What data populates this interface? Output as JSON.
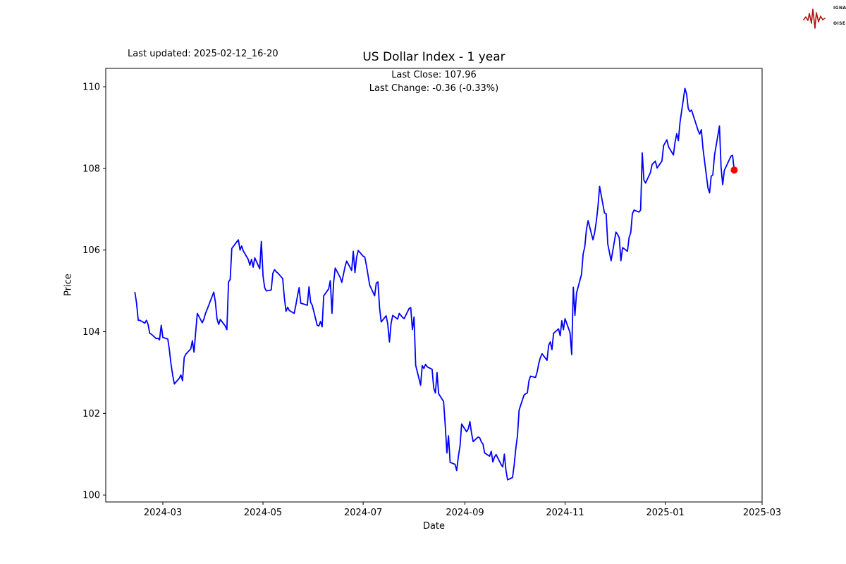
{
  "header": {
    "last_updated": "Last updated: 2025-02-12_16-20",
    "title": "US Dollar Index - 1 year",
    "subtitle_line1": "Last Close: 107.96",
    "subtitle_line2": "Last Change: -0.36 (-0.33%)"
  },
  "logo": {
    "accent_color": "#b01313",
    "rows": [
      {
        "box": "S",
        "rest": "IGNAL"
      },
      {
        "box": "2",
        "rest": ""
      },
      {
        "box": "N",
        "rest": "OISE"
      }
    ]
  },
  "chart_data": {
    "type": "line",
    "title": "US Dollar Index - 1 year",
    "xlabel": "Date",
    "ylabel": "Price",
    "grid": false,
    "legend": "none",
    "x_tick_labels": [
      "2024-03",
      "2024-05",
      "2024-07",
      "2024-09",
      "2024-11",
      "2025-01",
      "2025-03"
    ],
    "y_ticks": [
      100,
      102,
      104,
      106,
      108,
      110
    ],
    "ylim": [
      99.83,
      110.45
    ],
    "xlim": [
      "2024-01-26",
      "2025-03-02"
    ],
    "frame_color": "#000000",
    "series": [
      {
        "name": "US Dollar Index",
        "color": "#0000ff",
        "points": [
          [
            "2024-02-13",
            104.96
          ],
          [
            "2024-02-14",
            104.7
          ],
          [
            "2024-02-15",
            104.28
          ],
          [
            "2024-02-16",
            104.28
          ],
          [
            "2024-02-19",
            104.21
          ],
          [
            "2024-02-20",
            104.28
          ],
          [
            "2024-02-21",
            104.18
          ],
          [
            "2024-02-22",
            103.96
          ],
          [
            "2024-02-23",
            103.94
          ],
          [
            "2024-02-26",
            103.83
          ],
          [
            "2024-02-27",
            103.84
          ],
          [
            "2024-02-28",
            103.8
          ],
          [
            "2024-02-29",
            104.16
          ],
          [
            "2024-03-01",
            103.86
          ],
          [
            "2024-03-04",
            103.82
          ],
          [
            "2024-03-05",
            103.55
          ],
          [
            "2024-03-06",
            103.2
          ],
          [
            "2024-03-07",
            102.93
          ],
          [
            "2024-03-08",
            102.72
          ],
          [
            "2024-03-11",
            102.86
          ],
          [
            "2024-03-12",
            102.94
          ],
          [
            "2024-03-13",
            102.8
          ],
          [
            "2024-03-14",
            103.37
          ],
          [
            "2024-03-15",
            103.45
          ],
          [
            "2024-03-18",
            103.58
          ],
          [
            "2024-03-19",
            103.78
          ],
          [
            "2024-03-20",
            103.5
          ],
          [
            "2024-03-21",
            104.0
          ],
          [
            "2024-03-22",
            104.45
          ],
          [
            "2024-03-25",
            104.22
          ],
          [
            "2024-03-26",
            104.31
          ],
          [
            "2024-03-27",
            104.45
          ],
          [
            "2024-03-28",
            104.55
          ],
          [
            "2024-04-01",
            104.97
          ],
          [
            "2024-04-02",
            104.73
          ],
          [
            "2024-04-03",
            104.32
          ],
          [
            "2024-04-04",
            104.18
          ],
          [
            "2024-04-05",
            104.3
          ],
          [
            "2024-04-08",
            104.14
          ],
          [
            "2024-04-09",
            104.05
          ],
          [
            "2024-04-10",
            105.22
          ],
          [
            "2024-04-11",
            105.28
          ],
          [
            "2024-04-12",
            106.04
          ],
          [
            "2024-04-15",
            106.2
          ],
          [
            "2024-04-16",
            106.25
          ],
          [
            "2024-04-17",
            106.0
          ],
          [
            "2024-04-18",
            106.1
          ],
          [
            "2024-04-19",
            105.98
          ],
          [
            "2024-04-22",
            105.77
          ],
          [
            "2024-04-23",
            105.63
          ],
          [
            "2024-04-24",
            105.77
          ],
          [
            "2024-04-25",
            105.58
          ],
          [
            "2024-04-26",
            105.81
          ],
          [
            "2024-04-29",
            105.54
          ],
          [
            "2024-04-30",
            106.21
          ],
          [
            "2024-05-01",
            105.37
          ],
          [
            "2024-05-02",
            105.08
          ],
          [
            "2024-05-03",
            105.0
          ],
          [
            "2024-05-06",
            105.02
          ],
          [
            "2024-05-07",
            105.43
          ],
          [
            "2024-05-08",
            105.52
          ],
          [
            "2024-05-09",
            105.47
          ],
          [
            "2024-05-10",
            105.44
          ],
          [
            "2024-05-13",
            105.3
          ],
          [
            "2024-05-14",
            104.84
          ],
          [
            "2024-05-15",
            104.5
          ],
          [
            "2024-05-16",
            104.6
          ],
          [
            "2024-05-17",
            104.52
          ],
          [
            "2024-05-20",
            104.45
          ],
          [
            "2024-05-21",
            104.65
          ],
          [
            "2024-05-22",
            104.88
          ],
          [
            "2024-05-23",
            105.08
          ],
          [
            "2024-05-24",
            104.7
          ],
          [
            "2024-05-28",
            104.65
          ],
          [
            "2024-05-29",
            105.1
          ],
          [
            "2024-05-30",
            104.72
          ],
          [
            "2024-05-31",
            104.65
          ],
          [
            "2024-06-03",
            104.16
          ],
          [
            "2024-06-04",
            104.14
          ],
          [
            "2024-06-05",
            104.25
          ],
          [
            "2024-06-06",
            104.12
          ],
          [
            "2024-06-07",
            104.88
          ],
          [
            "2024-06-10",
            105.05
          ],
          [
            "2024-06-11",
            105.25
          ],
          [
            "2024-06-12",
            104.45
          ],
          [
            "2024-06-13",
            105.2
          ],
          [
            "2024-06-14",
            105.56
          ],
          [
            "2024-06-17",
            105.33
          ],
          [
            "2024-06-18",
            105.21
          ],
          [
            "2024-06-20",
            105.6
          ],
          [
            "2024-06-21",
            105.73
          ],
          [
            "2024-06-24",
            105.5
          ],
          [
            "2024-06-25",
            105.97
          ],
          [
            "2024-06-26",
            105.45
          ],
          [
            "2024-06-27",
            105.82
          ],
          [
            "2024-06-28",
            105.99
          ],
          [
            "2024-07-01",
            105.85
          ],
          [
            "2024-07-02",
            105.83
          ],
          [
            "2024-07-03",
            105.62
          ],
          [
            "2024-07-05",
            105.14
          ],
          [
            "2024-07-08",
            104.88
          ],
          [
            "2024-07-09",
            105.19
          ],
          [
            "2024-07-10",
            105.22
          ],
          [
            "2024-07-11",
            104.59
          ],
          [
            "2024-07-12",
            104.24
          ],
          [
            "2024-07-15",
            104.39
          ],
          [
            "2024-07-16",
            104.19
          ],
          [
            "2024-07-17",
            103.75
          ],
          [
            "2024-07-18",
            104.2
          ],
          [
            "2024-07-19",
            104.4
          ],
          [
            "2024-07-22",
            104.31
          ],
          [
            "2024-07-23",
            104.45
          ],
          [
            "2024-07-24",
            104.4
          ],
          [
            "2024-07-25",
            104.35
          ],
          [
            "2024-07-26",
            104.32
          ],
          [
            "2024-07-29",
            104.57
          ],
          [
            "2024-07-30",
            104.59
          ],
          [
            "2024-07-31",
            104.05
          ],
          [
            "2024-08-01",
            104.36
          ],
          [
            "2024-08-02",
            103.18
          ],
          [
            "2024-08-05",
            102.69
          ],
          [
            "2024-08-06",
            103.17
          ],
          [
            "2024-08-07",
            103.1
          ],
          [
            "2024-08-08",
            103.2
          ],
          [
            "2024-08-09",
            103.14
          ],
          [
            "2024-08-12",
            103.08
          ],
          [
            "2024-08-13",
            102.62
          ],
          [
            "2024-08-14",
            102.5
          ],
          [
            "2024-08-15",
            103.0
          ],
          [
            "2024-08-16",
            102.48
          ],
          [
            "2024-08-19",
            102.29
          ],
          [
            "2024-08-20",
            101.72
          ],
          [
            "2024-08-21",
            101.03
          ],
          [
            "2024-08-22",
            101.45
          ],
          [
            "2024-08-23",
            100.8
          ],
          [
            "2024-08-26",
            100.75
          ],
          [
            "2024-08-27",
            100.6
          ],
          [
            "2024-08-28",
            100.95
          ],
          [
            "2024-08-29",
            101.2
          ],
          [
            "2024-08-30",
            101.74
          ],
          [
            "2024-09-02",
            101.55
          ],
          [
            "2024-09-03",
            101.62
          ],
          [
            "2024-09-04",
            101.8
          ],
          [
            "2024-09-05",
            101.52
          ],
          [
            "2024-09-06",
            101.31
          ],
          [
            "2024-09-09",
            101.42
          ],
          [
            "2024-09-10",
            101.4
          ],
          [
            "2024-09-11",
            101.3
          ],
          [
            "2024-09-12",
            101.25
          ],
          [
            "2024-09-13",
            101.03
          ],
          [
            "2024-09-16",
            100.95
          ],
          [
            "2024-09-17",
            101.07
          ],
          [
            "2024-09-18",
            100.81
          ],
          [
            "2024-09-19",
            100.93
          ],
          [
            "2024-09-20",
            100.99
          ],
          [
            "2024-09-23",
            100.75
          ],
          [
            "2024-09-24",
            100.69
          ],
          [
            "2024-09-25",
            101.0
          ],
          [
            "2024-09-26",
            100.6
          ],
          [
            "2024-09-27",
            100.37
          ],
          [
            "2024-09-30",
            100.43
          ],
          [
            "2024-10-01",
            100.75
          ],
          [
            "2024-10-02",
            101.15
          ],
          [
            "2024-10-03",
            101.45
          ],
          [
            "2024-10-04",
            102.08
          ],
          [
            "2024-10-07",
            102.45
          ],
          [
            "2024-10-08",
            102.48
          ],
          [
            "2024-10-09",
            102.5
          ],
          [
            "2024-10-10",
            102.8
          ],
          [
            "2024-10-11",
            102.91
          ],
          [
            "2024-10-14",
            102.88
          ],
          [
            "2024-10-15",
            103.02
          ],
          [
            "2024-10-16",
            103.23
          ],
          [
            "2024-10-17",
            103.37
          ],
          [
            "2024-10-18",
            103.46
          ],
          [
            "2024-10-21",
            103.3
          ],
          [
            "2024-10-22",
            103.67
          ],
          [
            "2024-10-23",
            103.75
          ],
          [
            "2024-10-24",
            103.56
          ],
          [
            "2024-10-25",
            103.96
          ],
          [
            "2024-10-28",
            104.07
          ],
          [
            "2024-10-29",
            103.9
          ],
          [
            "2024-10-30",
            104.27
          ],
          [
            "2024-10-31",
            104.05
          ],
          [
            "2024-11-01",
            104.32
          ],
          [
            "2024-11-04",
            103.98
          ],
          [
            "2024-11-05",
            103.44
          ],
          [
            "2024-11-06",
            105.09
          ],
          [
            "2024-11-07",
            104.4
          ],
          [
            "2024-11-08",
            104.95
          ],
          [
            "2024-11-11",
            105.4
          ],
          [
            "2024-11-12",
            105.91
          ],
          [
            "2024-11-13",
            106.08
          ],
          [
            "2024-11-14",
            106.5
          ],
          [
            "2024-11-15",
            106.72
          ],
          [
            "2024-11-18",
            106.25
          ],
          [
            "2024-11-19",
            106.43
          ],
          [
            "2024-11-20",
            106.7
          ],
          [
            "2024-11-21",
            107.05
          ],
          [
            "2024-11-22",
            107.56
          ],
          [
            "2024-11-25",
            106.91
          ],
          [
            "2024-11-26",
            106.89
          ],
          [
            "2024-11-27",
            106.15
          ],
          [
            "2024-11-29",
            105.74
          ],
          [
            "2024-12-02",
            106.44
          ],
          [
            "2024-12-03",
            106.38
          ],
          [
            "2024-12-04",
            106.3
          ],
          [
            "2024-12-05",
            105.74
          ],
          [
            "2024-12-06",
            106.06
          ],
          [
            "2024-12-09",
            105.97
          ],
          [
            "2024-12-10",
            106.31
          ],
          [
            "2024-12-11",
            106.43
          ],
          [
            "2024-12-12",
            106.89
          ],
          [
            "2024-12-13",
            106.98
          ],
          [
            "2024-12-16",
            106.93
          ],
          [
            "2024-12-17",
            106.98
          ],
          [
            "2024-12-18",
            108.38
          ],
          [
            "2024-12-19",
            107.72
          ],
          [
            "2024-12-20",
            107.64
          ],
          [
            "2024-12-23",
            107.9
          ],
          [
            "2024-12-24",
            108.1
          ],
          [
            "2024-12-26",
            108.18
          ],
          [
            "2024-12-27",
            108.01
          ],
          [
            "2024-12-30",
            108.18
          ],
          [
            "2024-12-31",
            108.56
          ],
          [
            "2025-01-02",
            108.7
          ],
          [
            "2025-01-03",
            108.53
          ],
          [
            "2025-01-06",
            108.33
          ],
          [
            "2025-01-07",
            108.65
          ],
          [
            "2025-01-08",
            108.85
          ],
          [
            "2025-01-09",
            108.68
          ],
          [
            "2025-01-10",
            109.13
          ],
          [
            "2025-01-13",
            109.96
          ],
          [
            "2025-01-14",
            109.82
          ],
          [
            "2025-01-15",
            109.47
          ],
          [
            "2025-01-16",
            109.39
          ],
          [
            "2025-01-17",
            109.43
          ],
          [
            "2025-01-21",
            108.93
          ],
          [
            "2025-01-22",
            108.84
          ],
          [
            "2025-01-23",
            108.95
          ],
          [
            "2025-01-24",
            108.48
          ],
          [
            "2025-01-27",
            107.52
          ],
          [
            "2025-01-28",
            107.4
          ],
          [
            "2025-01-29",
            107.81
          ],
          [
            "2025-01-30",
            107.84
          ],
          [
            "2025-01-31",
            108.32
          ],
          [
            "2025-02-03",
            109.04
          ],
          [
            "2025-02-04",
            108.02
          ],
          [
            "2025-02-05",
            107.6
          ],
          [
            "2025-02-06",
            107.95
          ],
          [
            "2025-02-07",
            108.04
          ],
          [
            "2025-02-10",
            108.3
          ],
          [
            "2025-02-11",
            108.32
          ],
          [
            "2025-02-12",
            107.96
          ]
        ]
      }
    ],
    "last_point_marker": {
      "date": "2025-02-12",
      "value": 107.96,
      "color": "#ff0000"
    }
  }
}
